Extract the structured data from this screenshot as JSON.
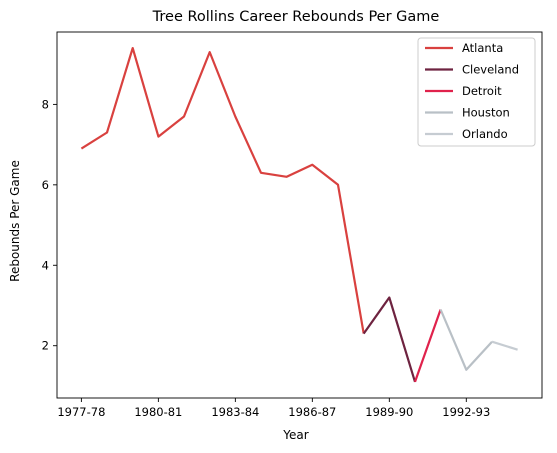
{
  "chart_data": {
    "type": "line",
    "title": "Tree Rollins Career Rebounds Per Game",
    "xlabel": "Year",
    "ylabel": "Rebounds Per Game",
    "x_ticks": [
      {
        "index": 0,
        "label": "1977-78"
      },
      {
        "index": 3,
        "label": "1980-81"
      },
      {
        "index": 6,
        "label": "1983-84"
      },
      {
        "index": 9,
        "label": "1986-87"
      },
      {
        "index": 12,
        "label": "1989-90"
      },
      {
        "index": 15,
        "label": "1992-93"
      }
    ],
    "y_ticks": [
      2,
      4,
      6,
      8
    ],
    "xlim": [
      -0.95,
      17.95
    ],
    "ylim": [
      0.7,
      9.8
    ],
    "grid": false,
    "legend_position": "top-right",
    "series": [
      {
        "name": "Atlanta",
        "color": "#d9413f",
        "points": [
          [
            0,
            6.9
          ],
          [
            1,
            7.3
          ],
          [
            2,
            9.4
          ],
          [
            3,
            7.2
          ],
          [
            4,
            7.7
          ],
          [
            5,
            9.3
          ],
          [
            6,
            7.7
          ],
          [
            7,
            6.3
          ],
          [
            8,
            6.2
          ],
          [
            9,
            6.5
          ],
          [
            10,
            6.0
          ],
          [
            11,
            2.3
          ]
        ]
      },
      {
        "name": "Cleveland",
        "color": "#6e2340",
        "points": [
          [
            11,
            2.3
          ],
          [
            12,
            3.2
          ],
          [
            13,
            1.1
          ]
        ]
      },
      {
        "name": "Detroit",
        "color": "#e0224c",
        "points": [
          [
            13,
            1.1
          ],
          [
            14,
            2.9
          ]
        ]
      },
      {
        "name": "Houston",
        "color": "#b9c0c6",
        "points": [
          [
            14,
            2.9
          ],
          [
            15,
            1.4
          ],
          [
            16,
            2.1
          ]
        ]
      },
      {
        "name": "Orlando",
        "color": "#c6ccd2",
        "points": [
          [
            16,
            2.1
          ],
          [
            17,
            1.9
          ]
        ]
      }
    ]
  }
}
